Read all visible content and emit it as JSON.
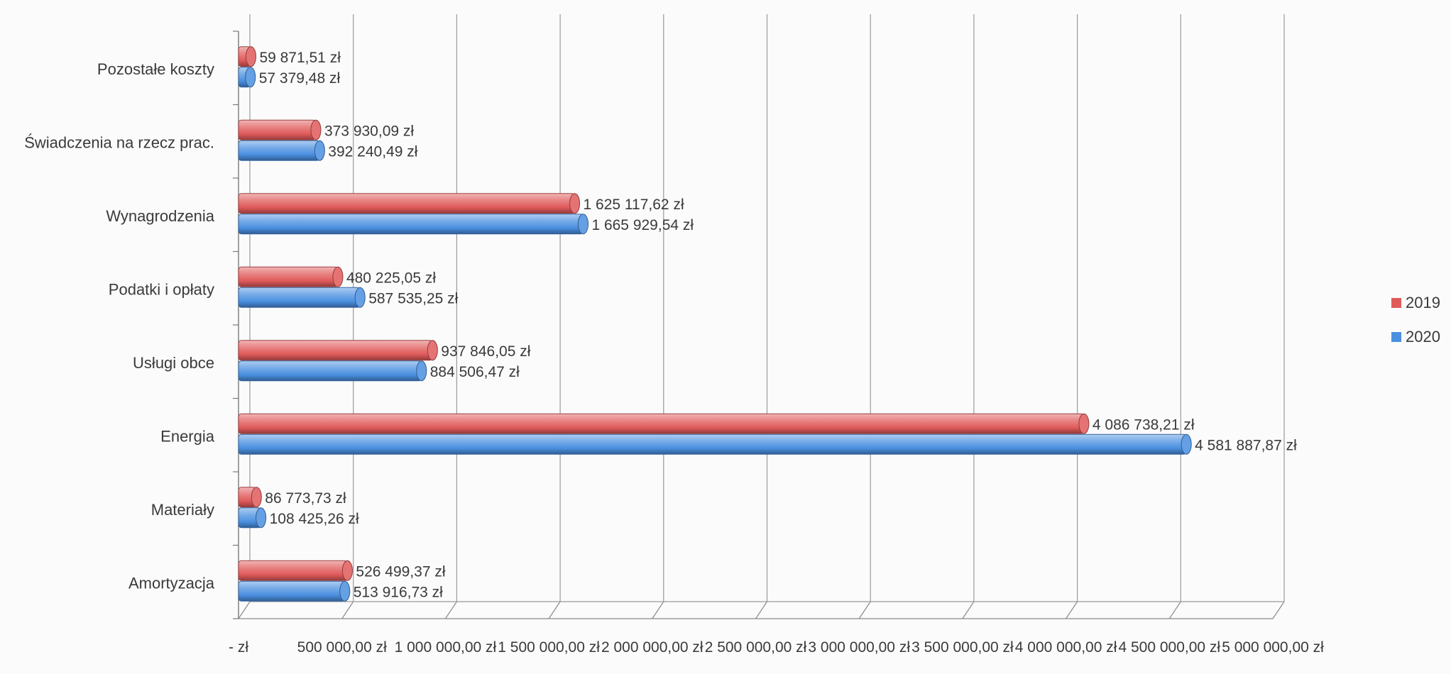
{
  "chart_data": {
    "type": "bar",
    "orientation": "horizontal",
    "style": "3d-cylinder",
    "categories": [
      "Amortyzacja",
      "Materiały",
      "Energia",
      "Usługi obce",
      "Podatki i opłaty",
      "Wynagrodzenia",
      "Świadczenia na rzecz prac.",
      "Pozostałe koszty"
    ],
    "series": [
      {
        "name": "2019",
        "color": "#e05a5a",
        "values": [
          526499.37,
          86773.73,
          4086738.21,
          937846.05,
          480225.05,
          1625117.62,
          373930.09,
          59871.51
        ],
        "labels": [
          "526 499,37 zł",
          "86 773,73 zł",
          "4 086 738,21 zł",
          "937 846,05 zł",
          "480 225,05 zł",
          "1 625 117,62 zł",
          "373 930,09 zł",
          "59 871,51 zł"
        ]
      },
      {
        "name": "2020",
        "color": "#4a8fe0",
        "values": [
          513916.73,
          108425.26,
          4581887.87,
          884506.47,
          587535.25,
          1665929.54,
          392240.49,
          57379.48
        ],
        "labels": [
          "513 916,73 zł",
          "108 425,26 zł",
          "4 581 887,87 zł",
          "884 506,47 zł",
          "587 535,25 zł",
          "1 665 929,54 zł",
          "392 240,49 zł",
          "57 379,48 zł"
        ]
      }
    ],
    "x_ticks": [
      {
        "value": 0,
        "label": "-   zł"
      },
      {
        "value": 500000,
        "label": "500 000,00 zł"
      },
      {
        "value": 1000000,
        "label": "1 000 000,00 zł"
      },
      {
        "value": 1500000,
        "label": "1 500 000,00 zł"
      },
      {
        "value": 2000000,
        "label": "2 000 000,00 zł"
      },
      {
        "value": 2500000,
        "label": "2 500 000,00 zł"
      },
      {
        "value": 3000000,
        "label": "3 000 000,00 zł"
      },
      {
        "value": 3500000,
        "label": "3 500 000,00 zł"
      },
      {
        "value": 4000000,
        "label": "4 000 000,00 zł"
      },
      {
        "value": 4500000,
        "label": "4 500 000,00 zł"
      },
      {
        "value": 5000000,
        "label": "5 000 000,00 zł"
      }
    ],
    "xlim": [
      0,
      5000000
    ],
    "grid": true,
    "legend_position": "right",
    "title": "",
    "xlabel": "",
    "ylabel": ""
  }
}
